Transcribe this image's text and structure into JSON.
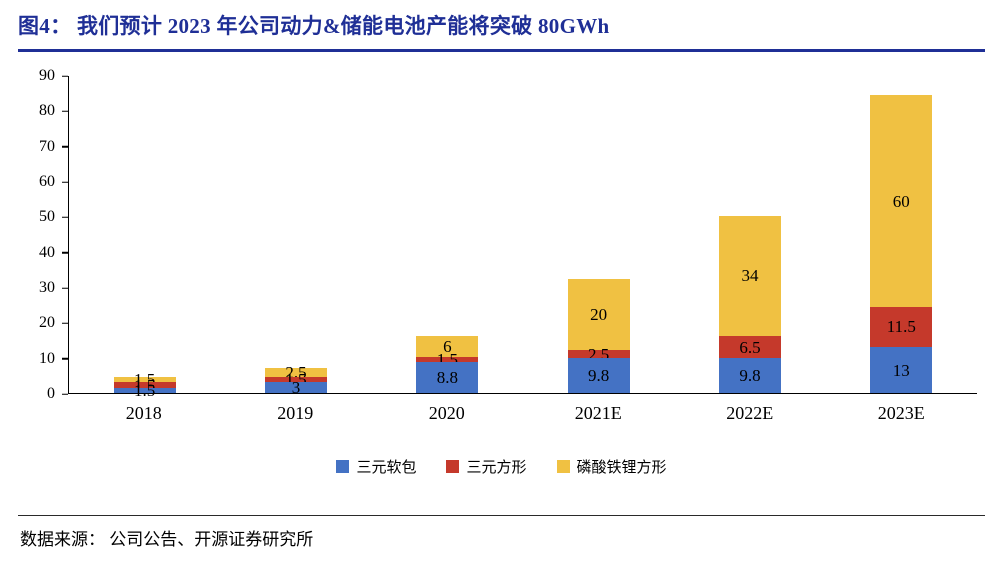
{
  "title": "图4： 我们预计 2023 年公司动力&储能电池产能将突破 80GWh",
  "source": "数据来源： 公司公告、开源证券研究所",
  "colors": {
    "title_blue": "#1F2F96",
    "series_blue": "#4472C4",
    "series_red": "#C5392B",
    "series_yellow": "#F0C142",
    "axis": "#000000"
  },
  "chart_data": {
    "type": "bar",
    "stacked": true,
    "title": "我们预计 2023 年公司动力&储能电池产能将突破 80GWh",
    "categories": [
      "2018",
      "2019",
      "2020",
      "2021E",
      "2022E",
      "2023E"
    ],
    "series": [
      {
        "name": "三元软包",
        "color": "#4472C4",
        "values": [
          1.5,
          3,
          8.8,
          9.8,
          9.8,
          13
        ]
      },
      {
        "name": "三元方形",
        "color": "#C5392B",
        "values": [
          1.5,
          1.5,
          1.5,
          2.5,
          6.5,
          11.5
        ]
      },
      {
        "name": "磷酸铁锂方形",
        "color": "#F0C142",
        "values": [
          1.5,
          2.5,
          6,
          20,
          34,
          60
        ]
      }
    ],
    "xlabel": "",
    "ylabel": "",
    "ylim": [
      0,
      90
    ],
    "yticks": [
      0,
      10,
      20,
      30,
      40,
      50,
      60,
      70,
      80,
      90
    ],
    "grid": false,
    "legend_position": "bottom",
    "data_labels": true
  }
}
